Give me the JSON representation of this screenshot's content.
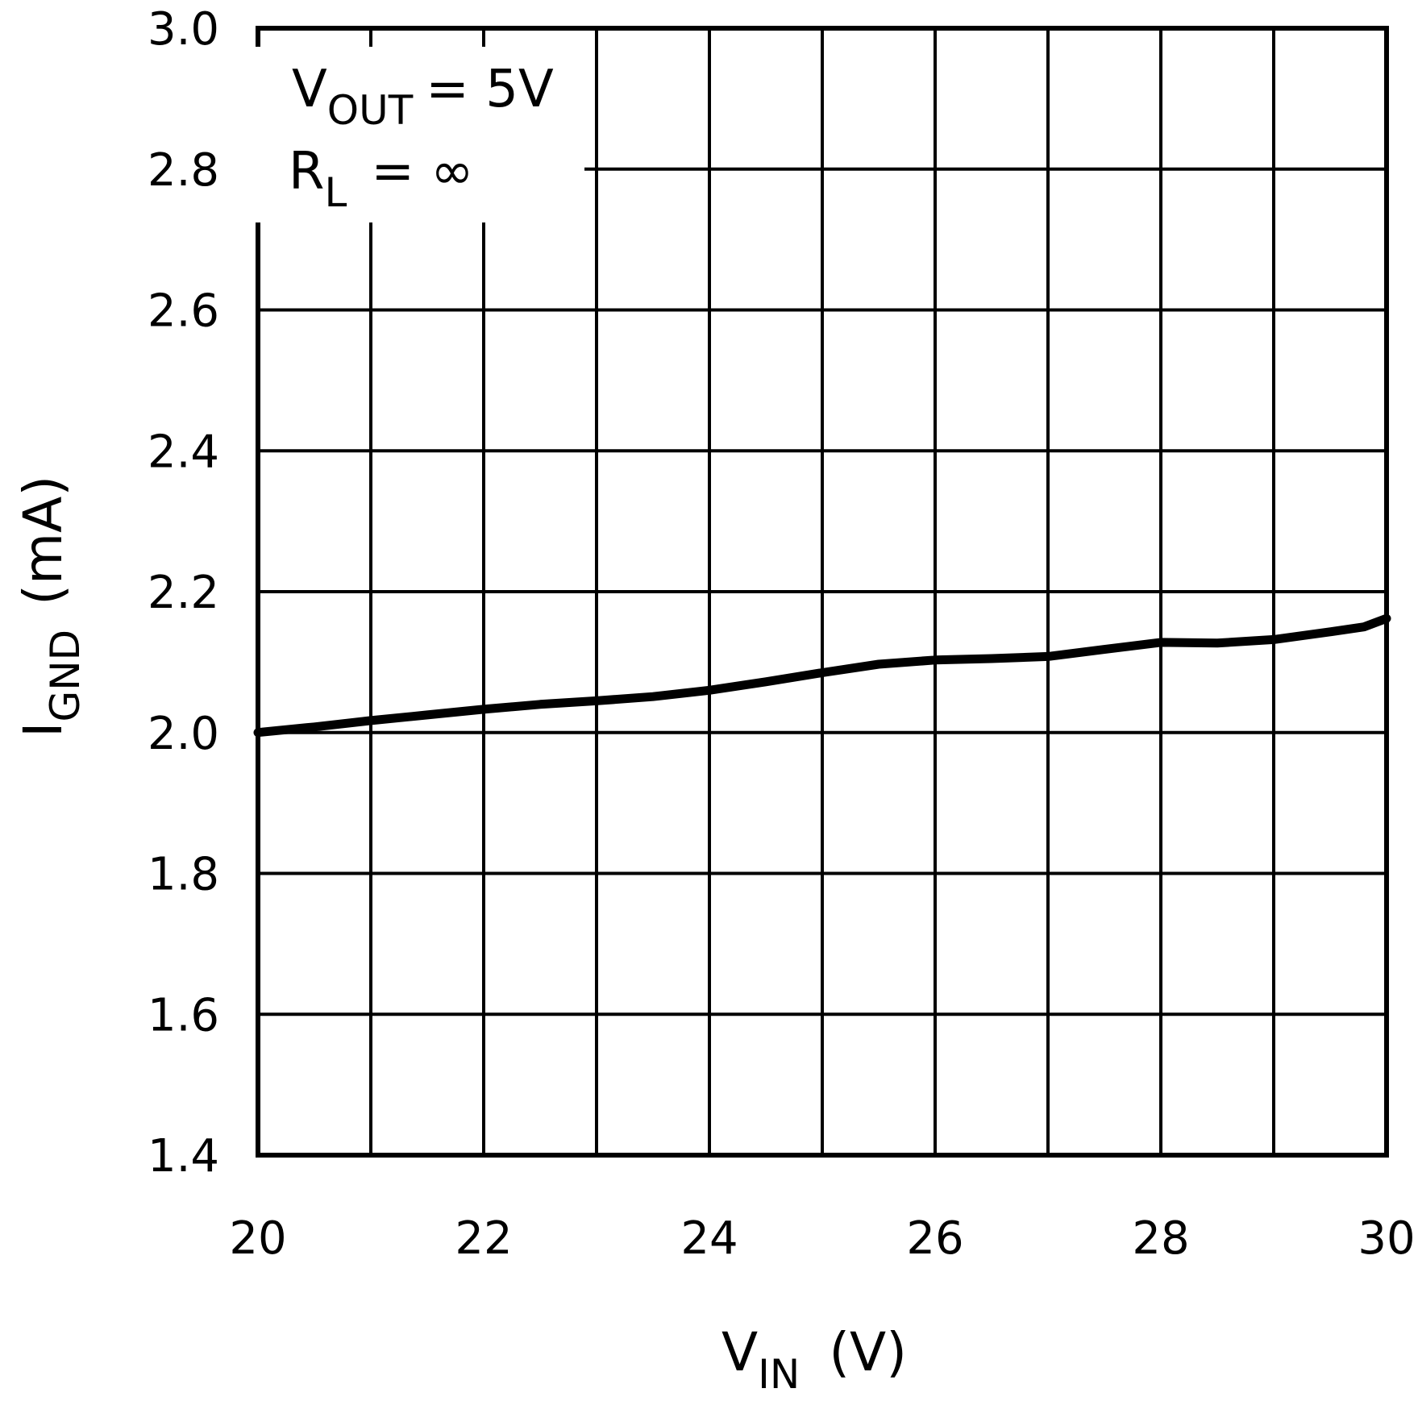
{
  "chart_data": {
    "type": "line",
    "title": "",
    "xlabel": "V",
    "xlabel_sub": "IN",
    "xlabel_unit": "(V)",
    "ylabel": "I",
    "ylabel_sub": "GND",
    "ylabel_unit": "(mA)",
    "xlim": [
      20,
      30
    ],
    "ylim": [
      1.4,
      3.0
    ],
    "x_ticks": [
      20,
      22,
      24,
      26,
      28,
      30
    ],
    "x_tick_labels": [
      "20",
      "22",
      "24",
      "26",
      "28",
      "30"
    ],
    "y_ticks": [
      1.4,
      1.6,
      1.8,
      2.0,
      2.2,
      2.4,
      2.6,
      2.8,
      3.0
    ],
    "y_tick_labels": [
      "1.4",
      "1.6",
      "1.8",
      "2.0",
      "2.2",
      "2.4",
      "2.6",
      "2.8",
      "3.0"
    ],
    "grid_x_step": 1,
    "grid": true,
    "annotations": {
      "vout_main": "V",
      "vout_sub": "OUT",
      "vout_value": "= 5V",
      "rl_main": "R",
      "rl_sub": "L",
      "rl_value": "= ∞"
    },
    "series": [
      {
        "x": [
          20,
          20.5,
          21,
          21.5,
          22,
          22.5,
          23,
          23.5,
          24,
          24.5,
          25,
          25.5,
          26,
          26.5,
          27,
          27.5,
          28,
          28.5,
          29,
          29.5,
          29.8,
          30
        ],
        "y": [
          2.0,
          2.008,
          2.017,
          2.025,
          2.033,
          2.04,
          2.045,
          2.051,
          2.06,
          2.072,
          2.085,
          2.097,
          2.103,
          2.105,
          2.108,
          2.118,
          2.128,
          2.127,
          2.132,
          2.143,
          2.15,
          2.162
        ],
        "color": "#000000"
      }
    ]
  }
}
